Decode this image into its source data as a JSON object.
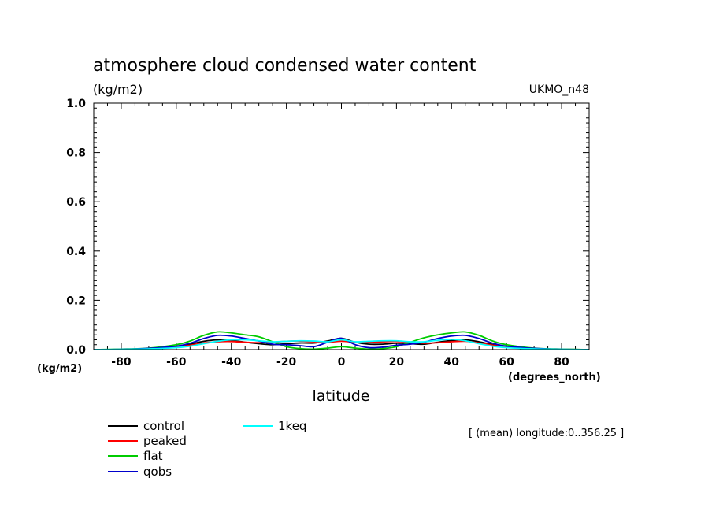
{
  "chart_data": {
    "type": "line",
    "title": "atmosphere cloud condensed water content",
    "units": "(kg/m2)",
    "source": "UKMO_n48",
    "xlabel": "latitude",
    "xunit": "(degrees_north)",
    "yunit": "(kg/m2)",
    "annotation": "[ (mean) longitude:0..356.25 ]",
    "xlim": [
      -90,
      90
    ],
    "ylim": [
      0.0,
      1.0
    ],
    "xticks": [
      -80,
      -60,
      -40,
      -20,
      0,
      20,
      40,
      60,
      80
    ],
    "xtick_labels": [
      "-80",
      "-60",
      "-40",
      "-20",
      "0",
      "20",
      "40",
      "60",
      "80"
    ],
    "yticks": [
      0.0,
      0.2,
      0.4,
      0.6,
      0.8,
      1.0
    ],
    "ytick_labels": [
      "0.0",
      "0.2",
      "0.4",
      "0.6",
      "0.8",
      "1.0"
    ],
    "grid": false,
    "legend_position": "below",
    "x": [
      -90,
      -80,
      -70,
      -60,
      -55,
      -50,
      -45,
      -40,
      -35,
      -30,
      -25,
      -20,
      -15,
      -10,
      -5,
      0,
      5,
      10,
      15,
      20,
      25,
      30,
      35,
      40,
      45,
      50,
      55,
      60,
      70,
      80,
      90
    ],
    "series": [
      {
        "name": "control",
        "color": "#000000",
        "values": [
          0.0,
          0.001,
          0.004,
          0.012,
          0.022,
          0.034,
          0.04,
          0.037,
          0.03,
          0.024,
          0.02,
          0.024,
          0.027,
          0.027,
          0.035,
          0.046,
          0.03,
          0.022,
          0.022,
          0.026,
          0.024,
          0.022,
          0.03,
          0.037,
          0.04,
          0.032,
          0.02,
          0.01,
          0.003,
          0.001,
          0.0
        ]
      },
      {
        "name": "peaked",
        "color": "#ff0000",
        "values": [
          0.0,
          0.001,
          0.004,
          0.01,
          0.018,
          0.027,
          0.032,
          0.033,
          0.03,
          0.028,
          0.03,
          0.034,
          0.035,
          0.032,
          0.03,
          0.034,
          0.03,
          0.03,
          0.032,
          0.033,
          0.03,
          0.026,
          0.028,
          0.032,
          0.034,
          0.027,
          0.018,
          0.01,
          0.003,
          0.001,
          0.0
        ]
      },
      {
        "name": "flat",
        "color": "#00cc00",
        "values": [
          0.0,
          0.002,
          0.006,
          0.02,
          0.035,
          0.058,
          0.072,
          0.068,
          0.06,
          0.052,
          0.032,
          0.012,
          0.004,
          0.002,
          0.006,
          0.012,
          0.006,
          0.002,
          0.004,
          0.012,
          0.03,
          0.048,
          0.06,
          0.068,
          0.072,
          0.058,
          0.035,
          0.02,
          0.006,
          0.002,
          0.0
        ]
      },
      {
        "name": "qobs",
        "color": "#0000cc",
        "values": [
          0.0,
          0.001,
          0.005,
          0.014,
          0.026,
          0.045,
          0.058,
          0.055,
          0.045,
          0.035,
          0.022,
          0.02,
          0.016,
          0.012,
          0.03,
          0.046,
          0.02,
          0.008,
          0.01,
          0.018,
          0.022,
          0.03,
          0.045,
          0.055,
          0.058,
          0.045,
          0.026,
          0.014,
          0.005,
          0.001,
          0.0
        ]
      },
      {
        "name": "1keq",
        "color": "#00ffff",
        "values": [
          0.0,
          0.001,
          0.003,
          0.008,
          0.014,
          0.024,
          0.034,
          0.04,
          0.04,
          0.036,
          0.032,
          0.034,
          0.036,
          0.035,
          0.032,
          0.04,
          0.032,
          0.034,
          0.036,
          0.036,
          0.032,
          0.032,
          0.038,
          0.042,
          0.036,
          0.024,
          0.014,
          0.008,
          0.003,
          0.001,
          0.0
        ]
      }
    ]
  }
}
